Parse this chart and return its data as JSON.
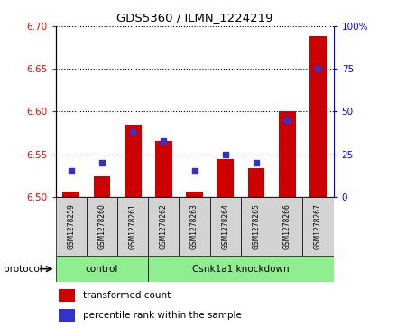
{
  "title": "GDS5360 / ILMN_1224219",
  "samples": [
    "GSM1278259",
    "GSM1278260",
    "GSM1278261",
    "GSM1278262",
    "GSM1278263",
    "GSM1278264",
    "GSM1278265",
    "GSM1278266",
    "GSM1278267"
  ],
  "transformed_count": [
    6.506,
    6.524,
    6.585,
    6.565,
    6.506,
    6.544,
    6.534,
    6.6,
    6.688
  ],
  "percentile_rank": [
    15,
    20,
    38,
    33,
    15,
    25,
    20,
    45,
    75
  ],
  "control_samples": 3,
  "knockdown_samples": 6,
  "protocol_label": "protocol",
  "control_label": "control",
  "knockdown_label": "Csnk1a1 knockdown",
  "ylim_left": [
    6.5,
    6.7
  ],
  "ylim_right": [
    0,
    100
  ],
  "yticks_left": [
    6.5,
    6.55,
    6.6,
    6.65,
    6.7
  ],
  "yticks_right": [
    0,
    25,
    50,
    75,
    100
  ],
  "bar_color_red": "#cc0000",
  "bar_color_blue": "#3333cc",
  "grid_color": "#000000",
  "legend_red_label": "transformed count",
  "legend_blue_label": "percentile rank within the sample"
}
